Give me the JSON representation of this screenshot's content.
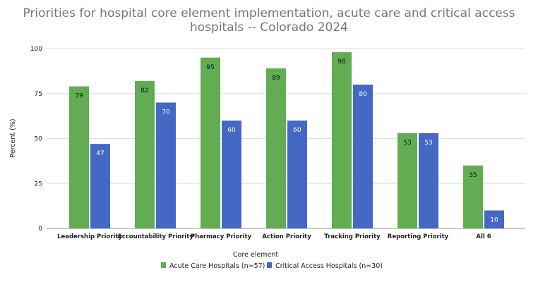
{
  "chart_data": {
    "type": "bar",
    "title_lines": [
      "Priorities for hospital core element implementation, acute care and critical access",
      "hospitals -- Colorado 2024"
    ],
    "xlabel": "Core element",
    "ylabel": "Percent (%)",
    "ylim": [
      0,
      100
    ],
    "yticks": [
      0,
      25,
      50,
      75,
      100
    ],
    "grid": true,
    "legend_position": "bottom",
    "categories": [
      "Leadership Priority",
      "Accountability Priority",
      "Pharmacy Priority",
      "Action Priority",
      "Tracking Priority",
      "Reporting Priority",
      "All 6"
    ],
    "series": [
      {
        "name": "Acute Care Hospitals (n=57)",
        "color": "#62ac52",
        "label_color": "#111111",
        "values": [
          79,
          82,
          95,
          89,
          98,
          53,
          35
        ]
      },
      {
        "name": "Critical Access Hospitals (n=30)",
        "color": "#4468c4",
        "label_color": "#ffffff",
        "values": [
          47,
          70,
          60,
          60,
          80,
          53,
          10
        ]
      }
    ]
  }
}
